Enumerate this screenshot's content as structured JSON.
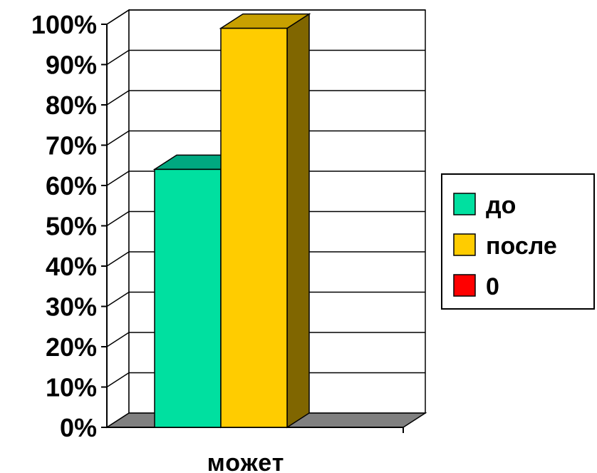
{
  "chart_data": {
    "type": "bar",
    "style": "3d-clustered",
    "categories": [
      "может"
    ],
    "series": [
      {
        "name": "до",
        "values": [
          64
        ],
        "color": "#00E0A0",
        "side_color": "#009070",
        "top_color": "#00A880"
      },
      {
        "name": "после",
        "values": [
          99
        ],
        "color": "#FFCC00",
        "side_color": "#806600",
        "top_color": "#C8A000"
      },
      {
        "name": "0",
        "values": [
          0
        ],
        "color": "#FF0000",
        "side_color": "#800000",
        "top_color": "#C00000"
      }
    ],
    "y_ticks": [
      "0%",
      "10%",
      "20%",
      "30%",
      "40%",
      "50%",
      "60%",
      "70%",
      "80%",
      "90%",
      "100%"
    ],
    "ylim": [
      0,
      100
    ],
    "y_unit": "%",
    "grid": true,
    "legend_position": "right",
    "floor_color": "#808080"
  }
}
